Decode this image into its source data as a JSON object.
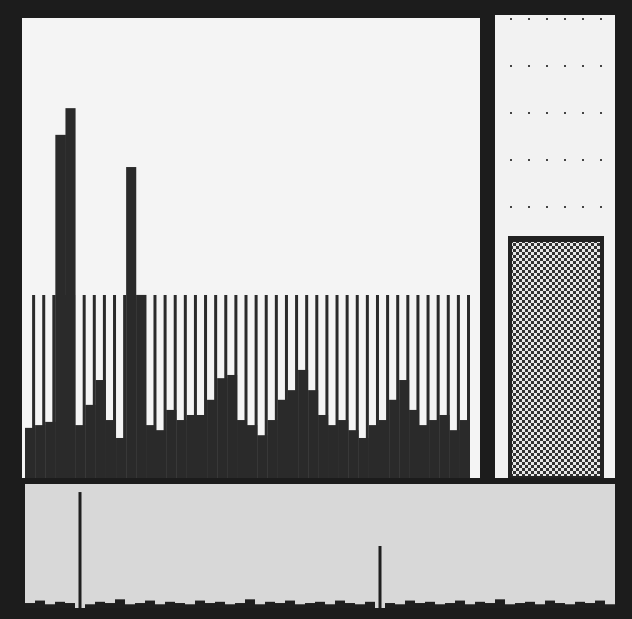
{
  "chart_data": [
    {
      "type": "bar",
      "color": "#2a2a2a",
      "ylim": [
        0,
        100
      ],
      "values": [
        10.9,
        11.5,
        12.2,
        74.6,
        80.4,
        11.5,
        15.9,
        21.3,
        12.6,
        8.7,
        67.6,
        39.8,
        11.5,
        10.4,
        14.8,
        12.6,
        13.7,
        13.7,
        17,
        21.7,
        22.4,
        12.6,
        11.5,
        9.3,
        12.6,
        17,
        19.1,
        23.5,
        19.1,
        13.7,
        11.5,
        12.6,
        10.4,
        8.7,
        11.5,
        12.6,
        17,
        21.3,
        14.8,
        11.5,
        12.6,
        13.7,
        10.4,
        12.6
      ]
    },
    {
      "type": "bar",
      "color": "#1e1e1e",
      "ylim": [
        0,
        100
      ],
      "values": [
        4,
        6,
        3,
        5,
        4,
        93.5,
        3,
        5,
        4,
        7,
        3,
        4,
        6,
        3,
        5,
        4,
        3,
        6,
        4,
        5,
        3,
        4,
        7,
        3,
        5,
        4,
        6,
        3,
        4,
        5,
        3,
        6,
        4,
        3,
        5,
        50,
        4,
        3,
        6,
        4,
        5,
        3,
        4,
        6,
        3,
        5,
        4,
        7,
        3,
        4,
        5,
        3,
        6,
        4,
        3,
        5,
        4,
        6,
        3
      ]
    }
  ]
}
